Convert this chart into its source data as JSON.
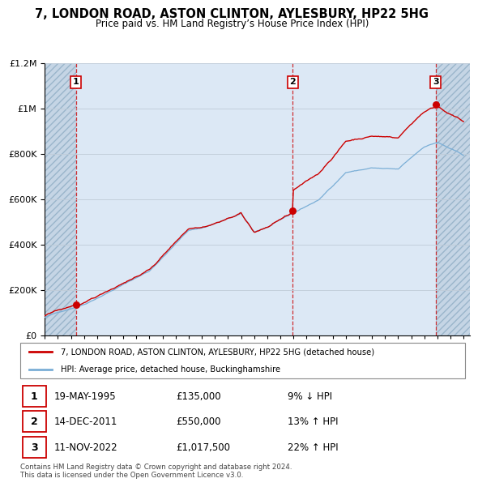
{
  "title": "7, LONDON ROAD, ASTON CLINTON, AYLESBURY, HP22 5HG",
  "subtitle": "Price paid vs. HM Land Registry’s House Price Index (HPI)",
  "sale_dates_dec": [
    1995.38,
    2011.96,
    2022.87
  ],
  "sale_prices": [
    135000,
    550000,
    1017500
  ],
  "sale_labels": [
    "1",
    "2",
    "3"
  ],
  "sale_date_strs": [
    "19-MAY-1995",
    "14-DEC-2011",
    "11-NOV-2022"
  ],
  "sale_price_strs": [
    "£135,000",
    "£550,000",
    "£1,017,500"
  ],
  "sale_hpi_strs": [
    "9% ↓ HPI",
    "13% ↑ HPI",
    "22% ↑ HPI"
  ],
  "ylim": [
    0,
    1200000
  ],
  "xlim_start": 1993.0,
  "xlim_end": 2025.5,
  "red_color": "#cc0000",
  "blue_color": "#7aaed6",
  "legend_label_red": "7, LONDON ROAD, ASTON CLINTON, AYLESBURY, HP22 5HG (detached house)",
  "legend_label_blue": "HPI: Average price, detached house, Buckinghamshire",
  "footnote": "Contains HM Land Registry data © Crown copyright and database right 2024.\nThis data is licensed under the Open Government Licence v3.0.",
  "plot_bg_color": "#dce8f5",
  "hatch_bg_color": "#c5d5e5"
}
